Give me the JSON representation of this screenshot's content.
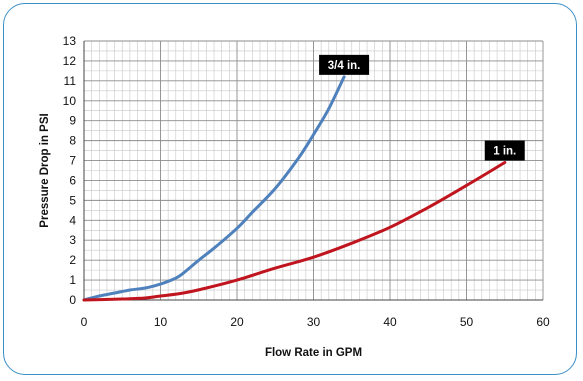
{
  "chart_data": {
    "type": "line",
    "title": "",
    "xlabel": "Flow Rate in GPM",
    "ylabel": "Pressure Drop in PSI",
    "xlim": [
      0,
      60
    ],
    "ylim": [
      0,
      13
    ],
    "x_ticks": [
      0,
      10,
      20,
      30,
      40,
      50,
      60
    ],
    "y_ticks": [
      0,
      1,
      2,
      3,
      4,
      5,
      6,
      7,
      8,
      9,
      10,
      11,
      12,
      13
    ],
    "x_tick_labels": [
      "0",
      "10",
      "20",
      "30",
      "40",
      "50",
      "60"
    ],
    "y_tick_labels": [
      "0",
      "1",
      "2",
      "3",
      "4",
      "5",
      "6",
      "7",
      "8",
      "9",
      "10",
      "11",
      "12",
      "13"
    ],
    "grid": true,
    "legend": "none",
    "series": [
      {
        "name": "3/4 in.",
        "color": "#4f81bd",
        "points": [
          [
            0,
            0
          ],
          [
            2,
            0.2
          ],
          [
            4,
            0.35
          ],
          [
            6,
            0.5
          ],
          [
            8,
            0.6
          ],
          [
            10,
            0.8
          ],
          [
            12,
            1.1
          ],
          [
            13,
            1.35
          ],
          [
            15,
            2.0
          ],
          [
            17,
            2.6
          ],
          [
            20,
            3.6
          ],
          [
            22,
            4.4
          ],
          [
            25,
            5.6
          ],
          [
            28,
            7.1
          ],
          [
            30,
            8.3
          ],
          [
            32,
            9.6
          ],
          [
            34,
            11.2
          ]
        ]
      },
      {
        "name": "1 in.",
        "color": "#c0141e",
        "points": [
          [
            0,
            0
          ],
          [
            5,
            0.05
          ],
          [
            8,
            0.1
          ],
          [
            10,
            0.2
          ],
          [
            13,
            0.35
          ],
          [
            16,
            0.6
          ],
          [
            20,
            1.0
          ],
          [
            25,
            1.6
          ],
          [
            30,
            2.15
          ],
          [
            35,
            2.85
          ],
          [
            40,
            3.65
          ],
          [
            45,
            4.65
          ],
          [
            50,
            5.75
          ],
          [
            55,
            6.9
          ]
        ]
      }
    ]
  }
}
